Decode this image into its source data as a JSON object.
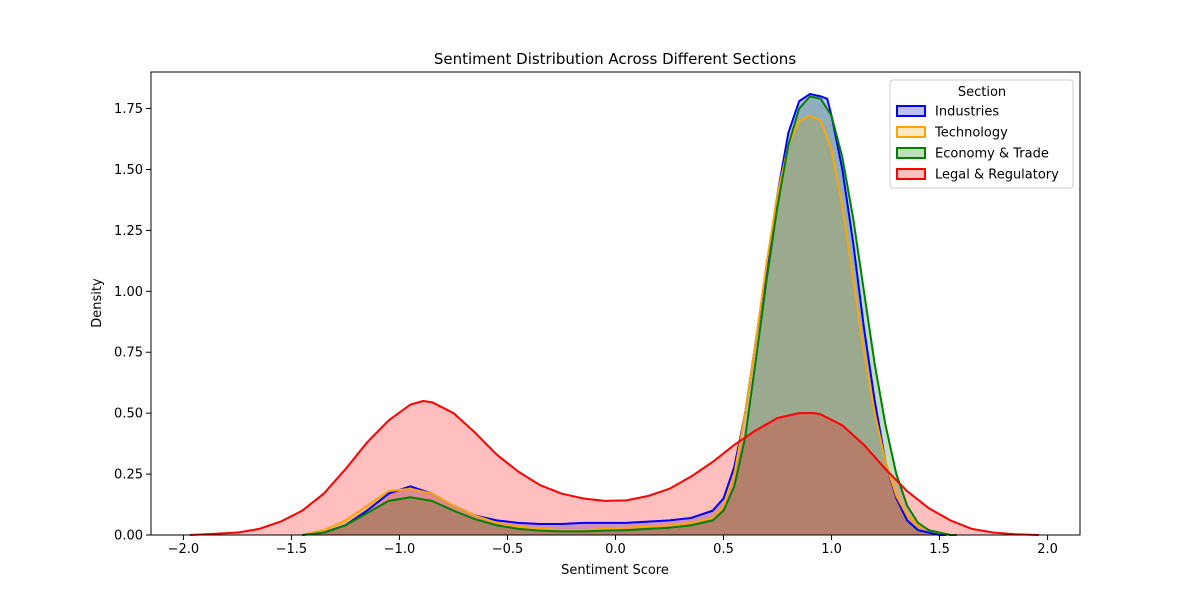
{
  "chart_data": {
    "type": "area",
    "title": "Sentiment Distribution Across Different Sections",
    "xlabel": "Sentiment Score",
    "ylabel": "Density",
    "xlim": [
      -2.15,
      2.15
    ],
    "ylim": [
      0,
      1.9
    ],
    "x_ticks": [
      -2.0,
      -1.5,
      -1.0,
      -0.5,
      0.0,
      0.5,
      1.0,
      1.5,
      2.0
    ],
    "x_tick_labels": [
      "−2.0",
      "−1.5",
      "−1.0",
      "−0.5",
      "0.0",
      "0.5",
      "1.0",
      "1.5",
      "2.0"
    ],
    "y_ticks": [
      0.0,
      0.25,
      0.5,
      0.75,
      1.0,
      1.25,
      1.5,
      1.75
    ],
    "y_tick_labels": [
      "0.00",
      "0.25",
      "0.50",
      "0.75",
      "1.00",
      "1.25",
      "1.50",
      "1.75"
    ],
    "grid": false,
    "legend": {
      "title": "Section",
      "placement": "top-right"
    },
    "series": [
      {
        "name": "Industries",
        "color": "#0000ff",
        "fill_opacity": 0.25,
        "x": [
          -1.45,
          -1.35,
          -1.25,
          -1.15,
          -1.05,
          -0.95,
          -0.85,
          -0.75,
          -0.65,
          -0.55,
          -0.45,
          -0.35,
          -0.25,
          -0.15,
          -0.05,
          0.05,
          0.15,
          0.25,
          0.35,
          0.45,
          0.5,
          0.55,
          0.6,
          0.65,
          0.7,
          0.75,
          0.8,
          0.85,
          0.9,
          0.95,
          0.98,
          1.0,
          1.05,
          1.1,
          1.15,
          1.2,
          1.25,
          1.3,
          1.35,
          1.4,
          1.45,
          1.5,
          1.53
        ],
        "y": [
          0.0,
          0.01,
          0.04,
          0.1,
          0.17,
          0.2,
          0.17,
          0.12,
          0.08,
          0.06,
          0.05,
          0.045,
          0.045,
          0.05,
          0.05,
          0.05,
          0.055,
          0.06,
          0.07,
          0.1,
          0.15,
          0.28,
          0.5,
          0.8,
          1.1,
          1.4,
          1.65,
          1.78,
          1.81,
          1.8,
          1.79,
          1.72,
          1.5,
          1.2,
          0.85,
          0.55,
          0.3,
          0.15,
          0.06,
          0.02,
          0.01,
          0.0,
          0.0
        ]
      },
      {
        "name": "Technology",
        "color": "#ffa500",
        "fill_opacity": 0.25,
        "x": [
          -1.45,
          -1.35,
          -1.25,
          -1.15,
          -1.05,
          -0.95,
          -0.85,
          -0.75,
          -0.65,
          -0.55,
          -0.45,
          -0.35,
          -0.25,
          -0.15,
          -0.05,
          0.05,
          0.15,
          0.25,
          0.35,
          0.45,
          0.5,
          0.55,
          0.6,
          0.65,
          0.7,
          0.75,
          0.8,
          0.85,
          0.9,
          0.95,
          1.0,
          1.05,
          1.1,
          1.15,
          1.2,
          1.25,
          1.3,
          1.35,
          1.4,
          1.45,
          1.5,
          1.55,
          1.58
        ],
        "y": [
          0.0,
          0.02,
          0.06,
          0.12,
          0.18,
          0.19,
          0.17,
          0.12,
          0.08,
          0.05,
          0.035,
          0.025,
          0.02,
          0.02,
          0.025,
          0.03,
          0.035,
          0.04,
          0.05,
          0.07,
          0.12,
          0.25,
          0.5,
          0.8,
          1.12,
          1.4,
          1.6,
          1.7,
          1.72,
          1.7,
          1.58,
          1.35,
          1.05,
          0.75,
          0.5,
          0.3,
          0.16,
          0.08,
          0.04,
          0.02,
          0.01,
          0.0,
          0.0
        ]
      },
      {
        "name": "Economy & Trade",
        "color": "#008000",
        "fill_opacity": 0.25,
        "x": [
          -1.45,
          -1.35,
          -1.25,
          -1.15,
          -1.05,
          -0.95,
          -0.85,
          -0.75,
          -0.65,
          -0.55,
          -0.45,
          -0.35,
          -0.25,
          -0.15,
          -0.05,
          0.05,
          0.15,
          0.25,
          0.35,
          0.45,
          0.5,
          0.55,
          0.6,
          0.65,
          0.7,
          0.75,
          0.8,
          0.85,
          0.9,
          0.95,
          1.0,
          1.05,
          1.1,
          1.15,
          1.2,
          1.25,
          1.3,
          1.35,
          1.4,
          1.45,
          1.5,
          1.55,
          1.58
        ],
        "y": [
          0.0,
          0.01,
          0.04,
          0.09,
          0.14,
          0.155,
          0.14,
          0.1,
          0.065,
          0.04,
          0.025,
          0.018,
          0.015,
          0.015,
          0.018,
          0.02,
          0.025,
          0.03,
          0.04,
          0.06,
          0.1,
          0.2,
          0.4,
          0.72,
          1.05,
          1.35,
          1.6,
          1.75,
          1.8,
          1.79,
          1.72,
          1.55,
          1.3,
          1.0,
          0.7,
          0.45,
          0.25,
          0.12,
          0.05,
          0.02,
          0.01,
          0.0,
          0.0
        ]
      },
      {
        "name": "Legal & Regulatory",
        "color": "#ff0000",
        "fill_opacity": 0.25,
        "x": [
          -1.97,
          -1.85,
          -1.75,
          -1.65,
          -1.55,
          -1.45,
          -1.35,
          -1.25,
          -1.15,
          -1.05,
          -0.95,
          -0.89,
          -0.85,
          -0.75,
          -0.65,
          -0.55,
          -0.45,
          -0.35,
          -0.25,
          -0.15,
          -0.05,
          0.05,
          0.15,
          0.25,
          0.35,
          0.45,
          0.55,
          0.65,
          0.75,
          0.85,
          0.92,
          0.95,
          1.05,
          1.15,
          1.25,
          1.35,
          1.45,
          1.55,
          1.65,
          1.75,
          1.85,
          1.96
        ],
        "y": [
          0.0,
          0.005,
          0.01,
          0.025,
          0.055,
          0.1,
          0.17,
          0.27,
          0.38,
          0.47,
          0.535,
          0.55,
          0.545,
          0.5,
          0.42,
          0.33,
          0.26,
          0.205,
          0.17,
          0.15,
          0.14,
          0.142,
          0.16,
          0.19,
          0.24,
          0.3,
          0.37,
          0.43,
          0.48,
          0.5,
          0.5,
          0.495,
          0.45,
          0.37,
          0.27,
          0.18,
          0.11,
          0.06,
          0.025,
          0.01,
          0.003,
          0.0
        ]
      }
    ]
  }
}
